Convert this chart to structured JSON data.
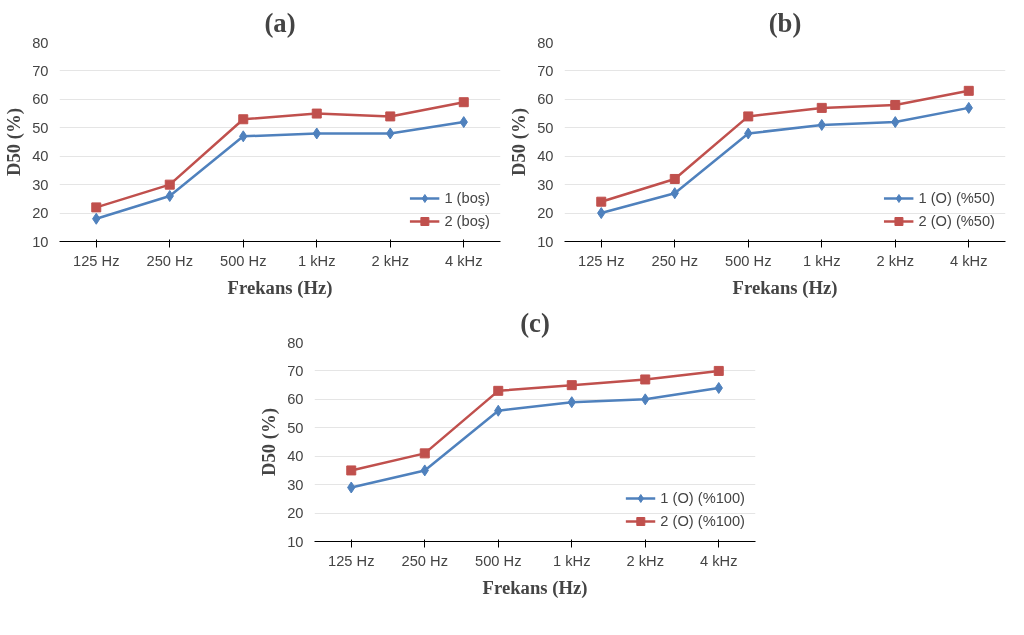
{
  "chart_data": [
    {
      "type": "line",
      "title": "(a)",
      "xlabel": "Frekans (Hz)",
      "ylabel": "D50 (%)",
      "categories": [
        "125 Hz",
        "250 Hz",
        "500 Hz",
        "1 kHz",
        "2 kHz",
        "4 kHz"
      ],
      "ylim": [
        10,
        80
      ],
      "yticks": [
        10,
        20,
        30,
        40,
        50,
        60,
        70,
        80
      ],
      "grid": "y",
      "legend": "bottom right",
      "series": [
        {
          "name": "1 (boş)",
          "color": "#4f81bd",
          "marker": "diamond",
          "values": [
            18,
            26,
            47,
            48,
            48,
            52
          ]
        },
        {
          "name": "2 (boş)",
          "color": "#c0504d",
          "marker": "square",
          "values": [
            22,
            30,
            53,
            55,
            54,
            59
          ]
        }
      ]
    },
    {
      "type": "line",
      "title": "(b)",
      "xlabel": "Frekans (Hz)",
      "ylabel": "D50 (%)",
      "categories": [
        "125 Hz",
        "250 Hz",
        "500 Hz",
        "1 kHz",
        "2 kHz",
        "4 kHz"
      ],
      "ylim": [
        10,
        80
      ],
      "yticks": [
        10,
        20,
        30,
        40,
        50,
        60,
        70,
        80
      ],
      "grid": "y",
      "legend": "bottom right",
      "series": [
        {
          "name": "1 (O) (%50)",
          "color": "#4f81bd",
          "marker": "diamond",
          "values": [
            20,
            27,
            48,
            51,
            52,
            57
          ]
        },
        {
          "name": "2 (O) (%50)",
          "color": "#c0504d",
          "marker": "square",
          "values": [
            24,
            32,
            54,
            57,
            58,
            63
          ]
        }
      ]
    },
    {
      "type": "line",
      "title": "(c)",
      "xlabel": "Frekans (Hz)",
      "ylabel": "D50 (%)",
      "categories": [
        "125 Hz",
        "250 Hz",
        "500 Hz",
        "1 kHz",
        "2 kHz",
        "4 kHz"
      ],
      "ylim": [
        10,
        80
      ],
      "yticks": [
        10,
        20,
        30,
        40,
        50,
        60,
        70,
        80
      ],
      "grid": "y",
      "legend": "bottom right",
      "series": [
        {
          "name": "1 (O) (%100)",
          "color": "#4f81bd",
          "marker": "diamond",
          "values": [
            29,
            35,
            56,
            59,
            60,
            64
          ]
        },
        {
          "name": "2 (O) (%100)",
          "color": "#c0504d",
          "marker": "square",
          "values": [
            35,
            41,
            63,
            65,
            67,
            70
          ]
        }
      ]
    }
  ]
}
